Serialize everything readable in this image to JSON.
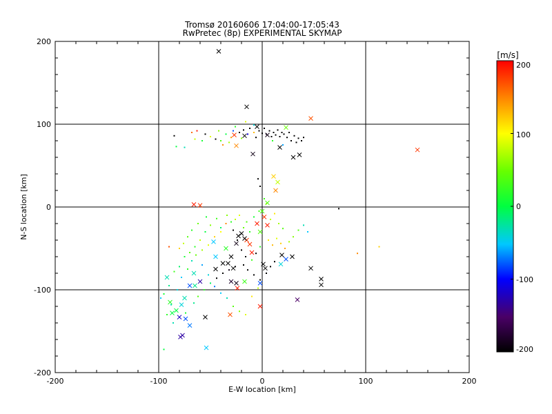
{
  "chart_data": {
    "type": "scatter",
    "title": "Tromsø 20160606 17:04:00-17:05:43",
    "subtitle": "RwPretec (8p) EXPERIMENTAL SKYMAP",
    "xlabel": "E-W location [km]",
    "ylabel": "N-S location [km]",
    "xlim": [
      -200,
      200
    ],
    "ylim": [
      -200,
      200
    ],
    "xticks": [
      "-200",
      "-100",
      "0",
      "100",
      "200"
    ],
    "yticks": [
      "-200",
      "-100",
      "0",
      "100",
      "200"
    ],
    "grid": true,
    "colorbar": {
      "label": "[m/s]",
      "range": [
        -200,
        200
      ],
      "ticks": [
        "200",
        "100",
        "0",
        "-100",
        "-200"
      ]
    },
    "series": [
      {
        "marker": "cross",
        "points": [
          [
            -42,
            188,
            -200
          ],
          [
            -15,
            121,
            -200
          ],
          [
            47,
            107,
            170
          ],
          [
            150,
            69,
            180
          ],
          [
            -25,
            74,
            150
          ],
          [
            -9,
            64,
            -190
          ],
          [
            -27,
            87,
            180
          ],
          [
            -17,
            86,
            -200
          ],
          [
            -5,
            97,
            -200
          ],
          [
            5,
            87,
            -190
          ],
          [
            23,
            96,
            50
          ],
          [
            17,
            72,
            -200
          ],
          [
            30,
            60,
            -200
          ],
          [
            36,
            63,
            -200
          ],
          [
            11,
            37,
            120
          ],
          [
            15,
            30,
            80
          ],
          [
            13,
            20,
            150
          ],
          [
            -60,
            2,
            180
          ],
          [
            -66,
            3,
            190
          ],
          [
            5,
            5,
            40
          ],
          [
            0,
            -5,
            40
          ],
          [
            -5,
            -20,
            190
          ],
          [
            -15,
            -40,
            180
          ],
          [
            -20,
            -32,
            -200
          ],
          [
            -17,
            -38,
            -200
          ],
          [
            -23,
            -35,
            -200
          ],
          [
            -25,
            -44,
            -190
          ],
          [
            -12,
            -45,
            180
          ],
          [
            -30,
            -60,
            -200
          ],
          [
            -33,
            -68,
            -200
          ],
          [
            -28,
            -74,
            -200
          ],
          [
            -38,
            -68,
            -200
          ],
          [
            -45,
            -75,
            -200
          ],
          [
            -25,
            -92,
            -190
          ],
          [
            -30,
            -90,
            -180
          ],
          [
            -24,
            -98,
            190
          ],
          [
            -17,
            -90,
            30
          ],
          [
            -2,
            -92,
            -80
          ],
          [
            3,
            -74,
            -200
          ],
          [
            1,
            -69,
            -200
          ],
          [
            19,
            -58,
            -200
          ],
          [
            23,
            -63,
            -80
          ],
          [
            18,
            -69,
            -40
          ],
          [
            29,
            -60,
            -200
          ],
          [
            47,
            -74,
            -200
          ],
          [
            57,
            -87,
            -200
          ],
          [
            57,
            -94,
            -200
          ],
          [
            34,
            -112,
            -150
          ],
          [
            -2,
            -120,
            190
          ],
          [
            -31,
            -130,
            170
          ],
          [
            -66,
            -80,
            -30
          ],
          [
            -70,
            -95,
            -80
          ],
          [
            -75,
            -110,
            -30
          ],
          [
            -78,
            -118,
            -40
          ],
          [
            -83,
            -125,
            0
          ],
          [
            -80,
            -133,
            -120
          ],
          [
            -74,
            -135,
            -80
          ],
          [
            -70,
            -143,
            -70
          ],
          [
            -77,
            -155,
            -130
          ],
          [
            -79,
            -157,
            -130
          ],
          [
            -55,
            -133,
            -200
          ],
          [
            -54,
            -170,
            -50
          ],
          [
            -87,
            -128,
            0
          ],
          [
            -89,
            -115,
            20
          ],
          [
            -92,
            -85,
            -30
          ],
          [
            -60,
            -90,
            -130
          ],
          [
            -65,
            -95,
            -20
          ],
          [
            -10,
            -55,
            190
          ],
          [
            -2,
            -30,
            40
          ],
          [
            5,
            -22,
            190
          ],
          [
            2,
            -12,
            180
          ],
          [
            -35,
            -50,
            20
          ],
          [
            -45,
            -60,
            -50
          ],
          [
            -47,
            -42,
            -50
          ]
        ]
      },
      {
        "marker": "dot",
        "points": [
          [
            -85,
            86,
            -200
          ],
          [
            -83,
            73,
            0
          ],
          [
            -68,
            90,
            160
          ],
          [
            -63,
            92,
            190
          ],
          [
            -55,
            88,
            -200
          ],
          [
            -50,
            85,
            90
          ],
          [
            -45,
            82,
            -200
          ],
          [
            -40,
            80,
            40
          ],
          [
            -35,
            88,
            0
          ],
          [
            -30,
            84,
            140
          ],
          [
            -28,
            92,
            -80
          ],
          [
            -22,
            90,
            -200
          ],
          [
            -20,
            83,
            60
          ],
          [
            -18,
            93,
            -200
          ],
          [
            -14,
            88,
            -110
          ],
          [
            -12,
            95,
            -200
          ],
          [
            -8,
            90,
            130
          ],
          [
            -6,
            84,
            -200
          ],
          [
            -3,
            92,
            -200
          ],
          [
            0,
            89,
            -200
          ],
          [
            2,
            95,
            -200
          ],
          [
            4,
            88,
            -190
          ],
          [
            7,
            92,
            -200
          ],
          [
            9,
            85,
            -200
          ],
          [
            11,
            90,
            -200
          ],
          [
            13,
            87,
            -200
          ],
          [
            15,
            93,
            -200
          ],
          [
            17,
            85,
            -200
          ],
          [
            19,
            90,
            -200
          ],
          [
            21,
            88,
            -200
          ],
          [
            24,
            84,
            -200
          ],
          [
            26,
            90,
            -200
          ],
          [
            28,
            80,
            -200
          ],
          [
            31,
            86,
            -200
          ],
          [
            33,
            78,
            -200
          ],
          [
            35,
            83,
            -200
          ],
          [
            38,
            80,
            -200
          ],
          [
            40,
            84,
            -200
          ],
          [
            20,
            75,
            -60
          ],
          [
            10,
            80,
            20
          ],
          [
            -32,
            78,
            70
          ],
          [
            -38,
            75,
            150
          ],
          [
            -58,
            80,
            10
          ],
          [
            -65,
            82,
            80
          ],
          [
            -75,
            72,
            -30
          ],
          [
            -42,
            92,
            60
          ],
          [
            -26,
            97,
            20
          ],
          [
            -16,
            103,
            90
          ],
          [
            -8,
            99,
            -40
          ],
          [
            -4,
            34,
            -200
          ],
          [
            -2,
            25,
            -200
          ],
          [
            2,
            10,
            30
          ],
          [
            4,
            4,
            60
          ],
          [
            -3,
            -5,
            30
          ],
          [
            -8,
            -12,
            10
          ],
          [
            -15,
            -18,
            40
          ],
          [
            -22,
            -10,
            90
          ],
          [
            -30,
            -18,
            20
          ],
          [
            -40,
            -25,
            -10
          ],
          [
            -50,
            -22,
            60
          ],
          [
            -55,
            -30,
            0
          ],
          [
            -60,
            -40,
            80
          ],
          [
            -65,
            -48,
            20
          ],
          [
            -70,
            -55,
            40
          ],
          [
            -75,
            -60,
            10
          ],
          [
            -80,
            -72,
            -10
          ],
          [
            -85,
            -78,
            30
          ],
          [
            -90,
            -95,
            -20
          ],
          [
            -95,
            -105,
            10
          ],
          [
            -88,
            -118,
            -30
          ],
          [
            -82,
            -100,
            -40
          ],
          [
            -78,
            -85,
            -50
          ],
          [
            -72,
            -75,
            20
          ],
          [
            -68,
            -65,
            -30
          ],
          [
            -64,
            -58,
            50
          ],
          [
            -58,
            -52,
            70
          ],
          [
            -52,
            -46,
            90
          ],
          [
            -46,
            -36,
            120
          ],
          [
            -40,
            -30,
            100
          ],
          [
            -35,
            -20,
            150
          ],
          [
            -28,
            -28,
            -200
          ],
          [
            -24,
            -40,
            -200
          ],
          [
            -20,
            -52,
            -200
          ],
          [
            -16,
            -60,
            -200
          ],
          [
            -10,
            -64,
            30
          ],
          [
            -6,
            -56,
            -200
          ],
          [
            -2,
            -48,
            20
          ],
          [
            6,
            -40,
            110
          ],
          [
            10,
            -46,
            130
          ],
          [
            14,
            -38,
            90
          ],
          [
            18,
            -44,
            120
          ],
          [
            22,
            -50,
            140
          ],
          [
            26,
            -42,
            70
          ],
          [
            30,
            -36,
            60
          ],
          [
            35,
            -28,
            40
          ],
          [
            40,
            -22,
            -30
          ],
          [
            44,
            -30,
            -50
          ],
          [
            8,
            -15,
            80
          ],
          [
            12,
            -8,
            110
          ],
          [
            16,
            -20,
            70
          ],
          [
            20,
            -26,
            40
          ],
          [
            -12,
            -30,
            20
          ],
          [
            -18,
            -25,
            50
          ],
          [
            -26,
            -15,
            80
          ],
          [
            -34,
            -10,
            60
          ],
          [
            -44,
            -14,
            30
          ],
          [
            -54,
            -12,
            10
          ],
          [
            -62,
            -20,
            50
          ],
          [
            -68,
            -28,
            20
          ],
          [
            -72,
            -36,
            40
          ],
          [
            -76,
            -44,
            80
          ],
          [
            -80,
            -50,
            120
          ],
          [
            -90,
            -48,
            170
          ],
          [
            -58,
            -70,
            -60
          ],
          [
            -52,
            -82,
            -40
          ],
          [
            -46,
            -96,
            -70
          ],
          [
            -40,
            -104,
            -50
          ],
          [
            -34,
            -110,
            -30
          ],
          [
            -28,
            -120,
            40
          ],
          [
            -22,
            -126,
            60
          ],
          [
            -16,
            -130,
            90
          ],
          [
            -10,
            -108,
            110
          ],
          [
            -4,
            -98,
            80
          ],
          [
            74,
            -2,
            -200
          ],
          [
            92,
            -56,
            150
          ],
          [
            113,
            -48,
            120
          ],
          [
            -95,
            -172,
            0
          ],
          [
            -86,
            -140,
            -30
          ],
          [
            -92,
            -130,
            20
          ],
          [
            -98,
            -110,
            -50
          ],
          [
            -74,
            -128,
            10
          ],
          [
            -66,
            -116,
            -20
          ],
          [
            -62,
            -108,
            40
          ],
          [
            -56,
            -100,
            20
          ],
          [
            -50,
            -92,
            -10
          ],
          [
            -44,
            -86,
            -200
          ],
          [
            -38,
            -80,
            -200
          ],
          [
            -32,
            -76,
            -190
          ],
          [
            -26,
            -72,
            -200
          ],
          [
            -18,
            -70,
            -200
          ],
          [
            -14,
            -76,
            -200
          ],
          [
            -8,
            -82,
            -200
          ],
          [
            -2,
            -88,
            -200
          ],
          [
            4,
            -80,
            -200
          ],
          [
            8,
            -72,
            -200
          ],
          [
            12,
            -66,
            -200
          ]
        ]
      }
    ]
  }
}
